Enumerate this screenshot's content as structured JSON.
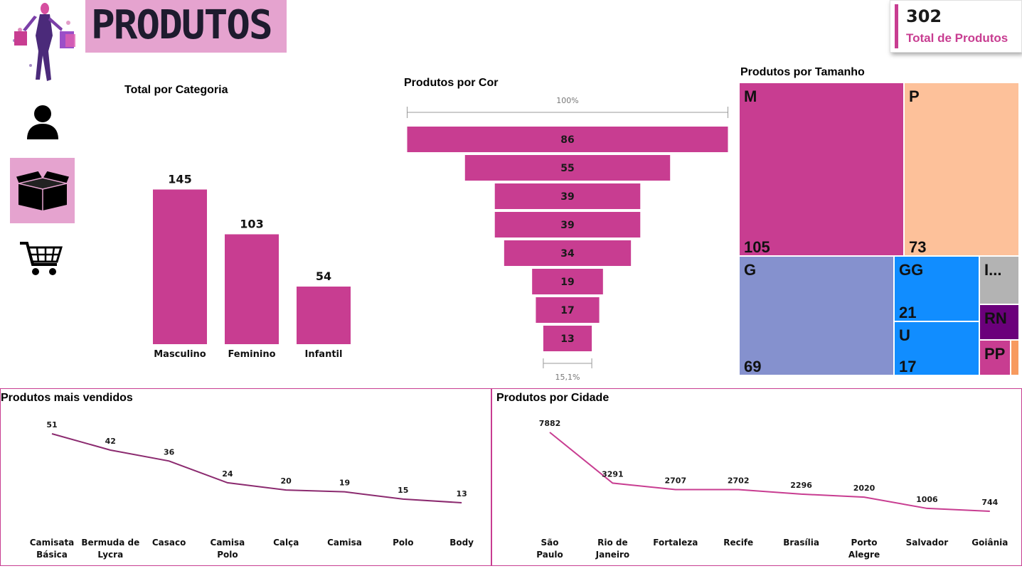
{
  "header": {
    "title": "PRODUTOS"
  },
  "kpi": {
    "value": "302",
    "label": "Total de Produtos"
  },
  "nav": {
    "items": [
      {
        "icon": "user-icon",
        "active": false
      },
      {
        "icon": "box-icon",
        "active": true
      },
      {
        "icon": "cart-icon",
        "active": false
      }
    ]
  },
  "colors": {
    "accent": "#c83d91",
    "accent_light": "#e5a3cf",
    "line_dark": "#8b2a6f"
  },
  "chart_data": [
    {
      "id": "categoria",
      "type": "bar",
      "title": "Total por Categoria",
      "categories": [
        "Masculino",
        "Feminino",
        "Infantil"
      ],
      "values": [
        145,
        103,
        54
      ],
      "ylim": [
        0,
        160
      ]
    },
    {
      "id": "cor",
      "type": "funnel",
      "title": "Produtos por Cor",
      "values": [
        86,
        55,
        39,
        39,
        34,
        19,
        17,
        13
      ],
      "top_label": "100%",
      "bottom_label": "15,1%"
    },
    {
      "id": "tamanho",
      "type": "treemap",
      "title": "Produtos por Tamanho",
      "items": [
        {
          "label": "M",
          "value": "105",
          "color": "#c83d91"
        },
        {
          "label": "P",
          "value": "73",
          "color": "#fdc19a"
        },
        {
          "label": "G",
          "value": "69",
          "color": "#8591ce"
        },
        {
          "label": "GG",
          "value": "21",
          "color": "#118dff"
        },
        {
          "label": "U",
          "value": "17",
          "color": "#118dff"
        },
        {
          "label": "I...",
          "value": "",
          "color": "#b3b3b3"
        },
        {
          "label": "RN",
          "value": "",
          "color": "#6b007b"
        },
        {
          "label": "PP",
          "value": "",
          "color": "#c83d91"
        },
        {
          "label": "",
          "value": "",
          "color": "#f79a5f"
        }
      ]
    },
    {
      "id": "vendidos",
      "type": "line",
      "title": "Produtos mais vendidos",
      "categories": [
        "Camisata Básica",
        "Bermuda de Lycra",
        "Casaco",
        "Camisa Polo",
        "Calça",
        "Camisa",
        "Polo",
        "Body"
      ],
      "values": [
        51,
        42,
        36,
        24,
        20,
        19,
        15,
        13
      ],
      "color": "#8b2a6f"
    },
    {
      "id": "cidade",
      "type": "line",
      "title": "Produtos por Cidade",
      "categories": [
        "São Paulo",
        "Rio de Janeiro",
        "Fortaleza",
        "Recife",
        "Brasília",
        "Porto Alegre",
        "Salvador",
        "Goiânia"
      ],
      "values": [
        7882,
        3291,
        2707,
        2702,
        2296,
        2020,
        1006,
        744
      ],
      "color": "#c83d91"
    }
  ]
}
